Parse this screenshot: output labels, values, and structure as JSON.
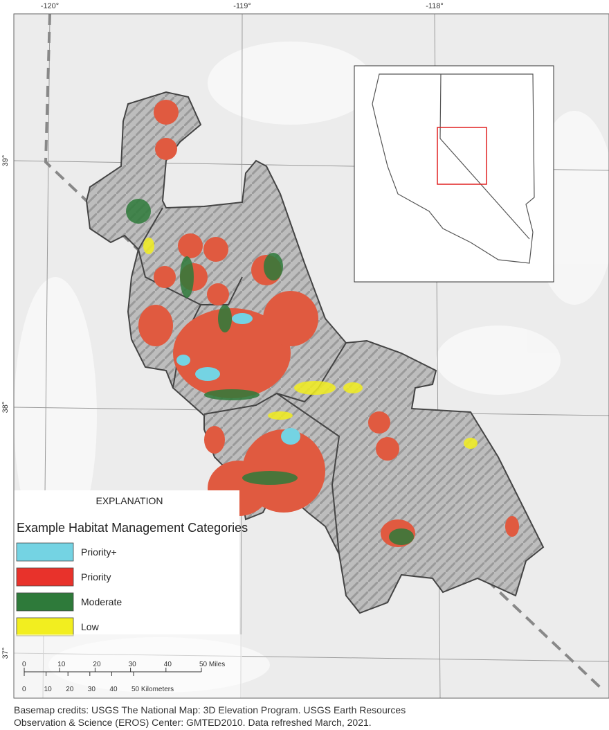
{
  "axes": {
    "longitude": [
      "-120°",
      "-119°",
      "-118°"
    ],
    "latitude": [
      "39°",
      "38°",
      "37°"
    ]
  },
  "legend": {
    "heading": "EXPLANATION",
    "title": "Example Habitat Management Categories",
    "items": [
      {
        "label": "Priority+",
        "color": "#74d3e3"
      },
      {
        "label": "Priority",
        "color": "#e8322b"
      },
      {
        "label": "Moderate",
        "color": "#2e7a3a"
      },
      {
        "label": "Low",
        "color": "#f2ee1f"
      }
    ]
  },
  "scale_bar": {
    "miles": [
      "0",
      "10",
      "20",
      "30",
      "40",
      "50 Miles"
    ],
    "kilometers": [
      "0",
      "10",
      "20",
      "30",
      "40",
      "50 Kilometers"
    ]
  },
  "credits": [
    "Basemap credits: USGS The National Map: 3D Elevation Program. USGS Earth Resources",
    "Observation & Science (EROS) Center: GMTED2010. Data refreshed March, 2021."
  ]
}
